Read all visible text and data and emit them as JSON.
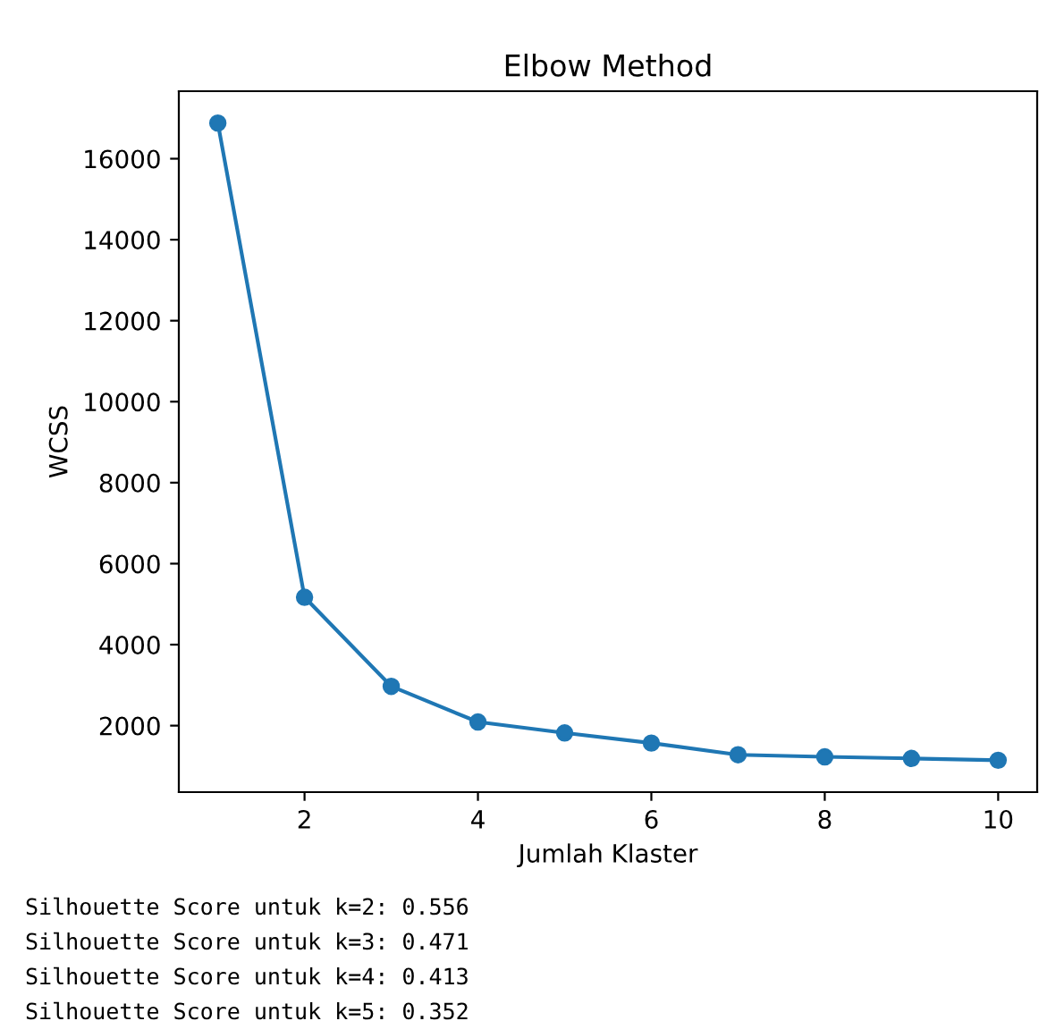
{
  "chart_data": {
    "type": "line",
    "title": "Elbow Method",
    "xlabel": "Jumlah Klaster",
    "ylabel": "WCSS",
    "x": [
      1,
      2,
      3,
      4,
      5,
      6,
      7,
      8,
      9,
      10
    ],
    "series": [
      {
        "color": "#1f77b4",
        "values": [
          16880,
          5170,
          2970,
          2090,
          1820,
          1570,
          1280,
          1230,
          1190,
          1145
        ]
      }
    ],
    "xlim": [
      0.55,
      10.45
    ],
    "xticks": [
      2,
      4,
      6,
      8,
      10
    ],
    "ylim": [
      358,
      17667
    ],
    "yticks": [
      2000,
      4000,
      6000,
      8000,
      10000,
      12000,
      14000,
      16000
    ],
    "marker": "circle",
    "line_style": "solid",
    "grid": false,
    "legend": false,
    "annotations": [
      "Silhouette Score untuk k=2: 0.556",
      "Silhouette Score untuk k=3: 0.471",
      "Silhouette Score untuk k=4: 0.413",
      "Silhouette Score untuk k=5: 0.352"
    ]
  }
}
